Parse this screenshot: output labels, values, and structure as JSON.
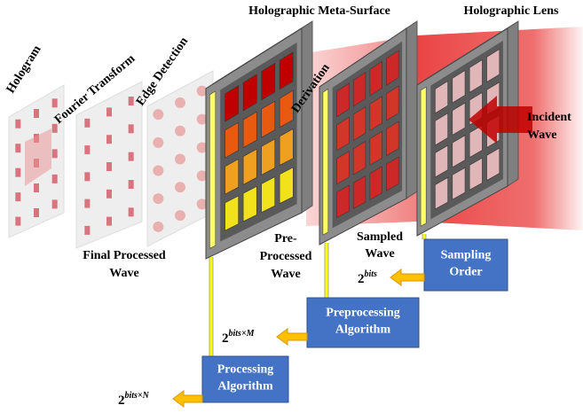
{
  "panels": {
    "hologram": "Hologram",
    "fourier_transform": "Fourier Transform",
    "edge_detection": "Edge Detection",
    "derivation": "Derivation"
  },
  "surfaces": {
    "meta_surface": "Holographic Meta-Surface",
    "lens": "Holographic Lens"
  },
  "waves": {
    "incident": [
      "Incident",
      "Wave"
    ],
    "sampled": [
      "Sampled",
      "Wave"
    ],
    "pre_processed": [
      "Pre-",
      "Processed",
      "Wave"
    ],
    "final_processed": [
      "Final Processed",
      "Wave"
    ]
  },
  "blocks": [
    {
      "label": [
        "Sampling",
        "Order"
      ],
      "output": {
        "base": "2",
        "exponent": "bits"
      }
    },
    {
      "label": [
        "Preprocessing",
        "Algorithm"
      ],
      "output": {
        "base": "2",
        "exponent": "bits×M"
      }
    },
    {
      "label": [
        "Processing",
        "Algorithm"
      ],
      "output": {
        "base": "2",
        "exponent": "bits×N"
      }
    }
  ]
}
